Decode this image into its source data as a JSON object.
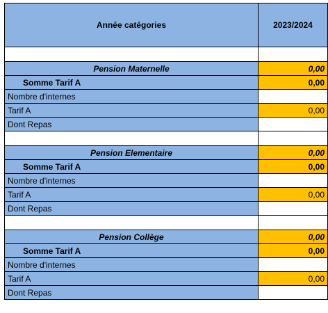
{
  "header": {
    "label": "Année catégories",
    "year": "2023/2024"
  },
  "sections": [
    {
      "title": "Pension Maternelle",
      "title_value": "0,00",
      "somme_label": "Somme  Tarif A",
      "somme_value": "0,00",
      "nombre_label": "Nombre d'internes",
      "tarif_label": "Tarif A",
      "tarif_value": "0,00",
      "repas_label": "Dont Repas"
    },
    {
      "title": "Pension Elementaire",
      "title_value": "0,00",
      "somme_label": "Somme  Tarif A",
      "somme_value": "0,00",
      "nombre_label": "Nombre d'internes",
      "tarif_label": "Tarif A",
      "tarif_value": "0,00",
      "repas_label": "Dont Repas"
    },
    {
      "title": "Pension Collège",
      "title_value": "0,00",
      "somme_label": "Somme  Tarif A",
      "somme_value": "0,00",
      "nombre_label": "Nombre d'internes",
      "tarif_label": "Tarif A",
      "tarif_value": "0,00",
      "repas_label": "Dont Repas"
    }
  ],
  "colors": {
    "header_blue": "#8db3e2",
    "value_gold": "#ffc000"
  }
}
